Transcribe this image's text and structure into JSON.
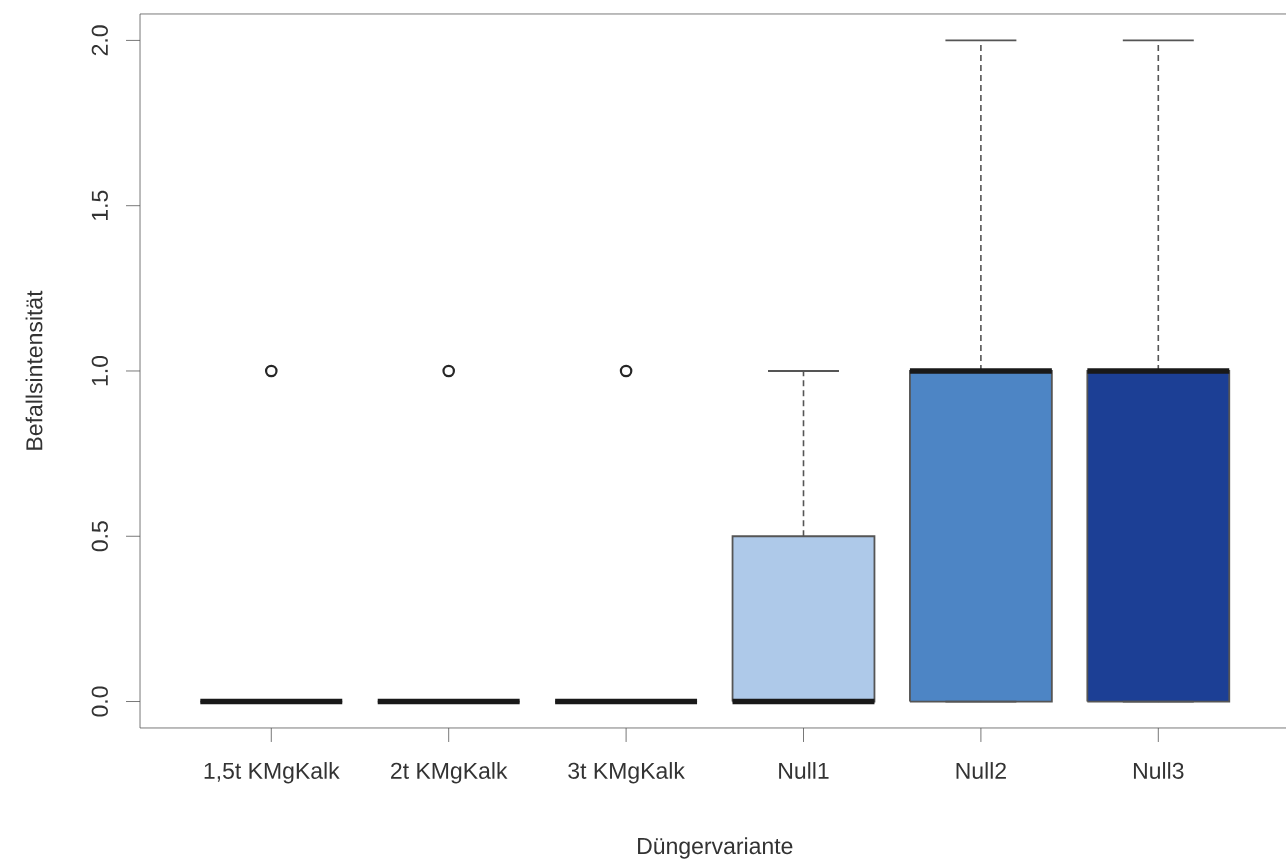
{
  "chart_data": {
    "type": "box",
    "xlabel": "Düngervariante",
    "ylabel": "Befallsintensität",
    "categories": [
      "1,5t KMgKalk",
      "2t KMgKalk",
      "3t KMgKalk",
      "Null1",
      "Null2",
      "Null3"
    ],
    "boxes": [
      {
        "low": 0,
        "q1": 0,
        "median": 0,
        "q3": 0,
        "high": 0,
        "outliers": [
          1
        ]
      },
      {
        "low": 0,
        "q1": 0,
        "median": 0,
        "q3": 0,
        "high": 0,
        "outliers": [
          1
        ]
      },
      {
        "low": 0,
        "q1": 0,
        "median": 0,
        "q3": 0,
        "high": 0,
        "outliers": [
          1
        ]
      },
      {
        "low": 0,
        "q1": 0,
        "median": 0,
        "q3": 0.5,
        "high": 1
      },
      {
        "low": 0,
        "q1": 0,
        "median": 1,
        "q3": 1,
        "high": 2
      },
      {
        "low": 0,
        "q1": 0,
        "median": 1,
        "q3": 1,
        "high": 2
      }
    ],
    "colors": [
      null,
      null,
      null,
      "#aec9e9",
      "#4d85c5",
      "#1c3f95"
    ],
    "ylim": [
      -0.08,
      2.08
    ],
    "yticks": [
      {
        "value": 0,
        "label": "0.0"
      },
      {
        "value": 0.5,
        "label": "0.5"
      },
      {
        "value": 1,
        "label": "1.0"
      },
      {
        "value": 1.5,
        "label": "1.5"
      },
      {
        "value": 2,
        "label": "2.0"
      }
    ]
  }
}
